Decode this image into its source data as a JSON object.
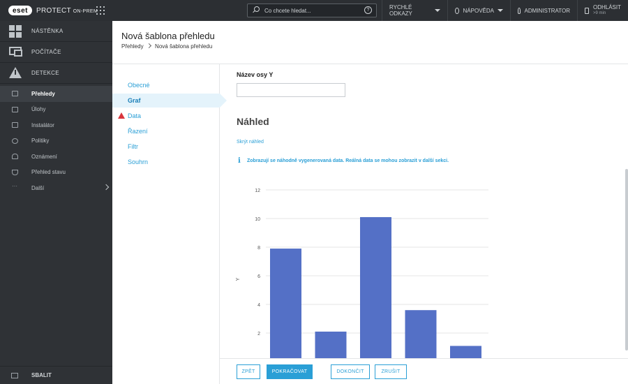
{
  "topbar": {
    "logo": "eset",
    "product": "PROTECT",
    "product_suffix": "ON-PREM",
    "search_placeholder": "Co chcete hledat...",
    "quick_links": "RYCHLÉ ODKAZY",
    "help": "NÁPOVĚDA",
    "user": "ADMINISTRATOR",
    "logout": "ODHLÁSIT",
    "logout_sub": ">9 min"
  },
  "sidebar": {
    "top_items": [
      "NÁSTĚNKA",
      "POČÍTAČE",
      "DETEKCE"
    ],
    "items": [
      {
        "label": "Přehledy",
        "icon": "chart-icon",
        "active": true
      },
      {
        "label": "Úlohy",
        "icon": "folder-icon"
      },
      {
        "label": "Instalátor",
        "icon": "printer-icon"
      },
      {
        "label": "Politiky",
        "icon": "gear-icon"
      },
      {
        "label": "Oznámení",
        "icon": "bell-icon"
      },
      {
        "label": "Přehled stavu",
        "icon": "funnel-icon"
      },
      {
        "label": "Další",
        "icon": "more-icon"
      }
    ],
    "collapse": "SBALIT"
  },
  "header": {
    "title": "Nová šablona přehledu",
    "breadcrumb_root": "Přehledy",
    "breadcrumb_current": "Nová šablona přehledu"
  },
  "wizard": {
    "steps": [
      "Obecné",
      "Graf",
      "Data",
      "Řazení",
      "Filtr",
      "Souhrn"
    ],
    "active": "Graf",
    "warning_step": "Data"
  },
  "form": {
    "y_axis_label": "Název osy Y",
    "y_axis_value": ""
  },
  "preview": {
    "title": "Náhled",
    "hide_link": "Skrýt náhled",
    "info": "Zobrazují se náhodně vygenerovaná data. Reálná data se mohou zobrazit v další sekci."
  },
  "chart_data": {
    "type": "bar",
    "categories": [
      "",
      "",
      "",
      "",
      ""
    ],
    "values": [
      7.9,
      2.1,
      10.1,
      3.6,
      1.1
    ],
    "ylabel": "Y",
    "yticks": [
      2,
      4,
      6,
      8,
      10,
      12
    ],
    "ylim": [
      0,
      12
    ],
    "grid": true,
    "bar_color": "#5470c6"
  },
  "footer": {
    "back": "ZPĚT",
    "continue": "POKRAČOVAT",
    "finish": "DOKONČIT",
    "cancel": "ZRUŠIT"
  },
  "colors": {
    "accent": "#2a9fd6",
    "sidebar_bg": "#2f3236",
    "topbar_bg": "#2c2f33",
    "warning": "#d9363e"
  }
}
